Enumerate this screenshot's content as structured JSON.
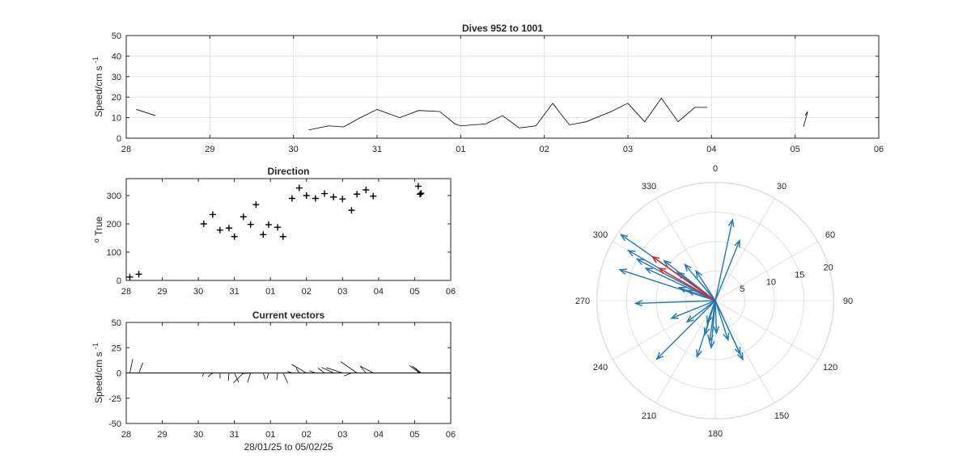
{
  "chart_data": [
    {
      "type": "line",
      "title": "Dives 952 to 1001",
      "ylabel": "Speed/cm s",
      "ylabel_sup": "-1",
      "xlabel": "",
      "x_ticks": [
        "28",
        "29",
        "30",
        "31",
        "01",
        "02",
        "03",
        "04",
        "05",
        "06"
      ],
      "y_ticks": [
        "0",
        "10",
        "20",
        "30",
        "40",
        "50"
      ],
      "xlim": [
        0,
        9
      ],
      "ylim": [
        0,
        50
      ],
      "grid": true,
      "segments": [
        {
          "x": [
            0.12,
            0.35
          ],
          "y": [
            14,
            11
          ]
        },
        {
          "x": [
            2.18,
            2.42,
            2.6,
            2.8,
            3.0,
            3.27,
            3.5,
            3.75,
            3.93,
            4.0,
            4.3,
            4.5,
            4.7,
            4.9,
            5.1,
            5.3,
            5.5,
            5.8,
            6.0
          ],
          "y": [
            4,
            6,
            5.5,
            10,
            14,
            10,
            13.5,
            13,
            7,
            6,
            7,
            11,
            5,
            6,
            17,
            6.5,
            8,
            13,
            17
          ]
        },
        {
          "x": [
            6.0,
            6.2,
            6.4,
            6.6,
            6.8,
            6.95
          ],
          "y": [
            17,
            8,
            19.5,
            8,
            15,
            15
          ]
        },
        {
          "x": [
            8.1,
            8.15,
            8.12
          ],
          "y": [
            5.5,
            13,
            11
          ]
        }
      ]
    },
    {
      "type": "scatter",
      "title": "Direction",
      "ylabel": "True",
      "ylabel_sup": "o",
      "marker": "+",
      "x_ticks": [
        "28",
        "29",
        "30",
        "31",
        "01",
        "02",
        "03",
        "04",
        "05",
        "06"
      ],
      "y_ticks": [
        "0",
        "100",
        "200",
        "300"
      ],
      "xlim": [
        0,
        9
      ],
      "ylim": [
        0,
        360
      ],
      "grid": false,
      "points": [
        {
          "x": 0.1,
          "y": 12
        },
        {
          "x": 0.35,
          "y": 22
        },
        {
          "x": 2.15,
          "y": 200
        },
        {
          "x": 2.4,
          "y": 233
        },
        {
          "x": 2.6,
          "y": 178
        },
        {
          "x": 2.85,
          "y": 185
        },
        {
          "x": 3.0,
          "y": 155
        },
        {
          "x": 3.25,
          "y": 225
        },
        {
          "x": 3.45,
          "y": 198
        },
        {
          "x": 3.6,
          "y": 268
        },
        {
          "x": 3.8,
          "y": 162
        },
        {
          "x": 3.95,
          "y": 197
        },
        {
          "x": 4.2,
          "y": 188
        },
        {
          "x": 4.35,
          "y": 155
        },
        {
          "x": 4.6,
          "y": 290
        },
        {
          "x": 4.8,
          "y": 327
        },
        {
          "x": 5.0,
          "y": 300
        },
        {
          "x": 5.25,
          "y": 290
        },
        {
          "x": 5.5,
          "y": 307
        },
        {
          "x": 5.75,
          "y": 295
        },
        {
          "x": 6.0,
          "y": 288
        },
        {
          "x": 6.25,
          "y": 248
        },
        {
          "x": 6.4,
          "y": 305
        },
        {
          "x": 6.65,
          "y": 320
        },
        {
          "x": 6.85,
          "y": 298
        },
        {
          "x": 8.1,
          "y": 333
        },
        {
          "x": 8.15,
          "y": 305
        },
        {
          "x": 8.18,
          "y": 308
        }
      ]
    },
    {
      "type": "line",
      "subtype": "stick-plot",
      "title": "Current vectors",
      "ylabel": "Speed/cm s",
      "ylabel_sup": "-1",
      "xlabel": "28/01/25 to 05/02/25",
      "x_ticks": [
        "28",
        "29",
        "30",
        "31",
        "01",
        "02",
        "03",
        "04",
        "05",
        "06"
      ],
      "y_ticks": [
        "50",
        "25",
        "0",
        "-25",
        "-50"
      ],
      "xlim": [
        0,
        9
      ],
      "ylim": [
        -50,
        50
      ],
      "grid": false,
      "sticks": [
        {
          "x": 0.1,
          "speed": 14,
          "dir": 12
        },
        {
          "x": 0.35,
          "speed": 11,
          "dir": 22
        },
        {
          "x": 2.15,
          "speed": 4,
          "dir": 200
        },
        {
          "x": 2.4,
          "speed": 6,
          "dir": 233
        },
        {
          "x": 2.6,
          "speed": 5.5,
          "dir": 178
        },
        {
          "x": 2.85,
          "speed": 8,
          "dir": 185
        },
        {
          "x": 3.0,
          "speed": 10,
          "dir": 155
        },
        {
          "x": 3.25,
          "speed": 14,
          "dir": 225
        },
        {
          "x": 3.45,
          "speed": 10,
          "dir": 198
        },
        {
          "x": 3.6,
          "speed": 13.5,
          "dir": 268
        },
        {
          "x": 3.8,
          "speed": 7,
          "dir": 162
        },
        {
          "x": 3.95,
          "speed": 6,
          "dir": 197
        },
        {
          "x": 4.2,
          "speed": 7,
          "dir": 188
        },
        {
          "x": 4.35,
          "speed": 11,
          "dir": 155
        },
        {
          "x": 4.6,
          "speed": 5,
          "dir": 290
        },
        {
          "x": 4.8,
          "speed": 6,
          "dir": 327
        },
        {
          "x": 5.0,
          "speed": 17,
          "dir": 300
        },
        {
          "x": 5.25,
          "speed": 6.5,
          "dir": 290
        },
        {
          "x": 5.5,
          "speed": 8,
          "dir": 307
        },
        {
          "x": 5.75,
          "speed": 13,
          "dir": 295
        },
        {
          "x": 6.0,
          "speed": 17,
          "dir": 288
        },
        {
          "x": 6.25,
          "speed": 8,
          "dir": 248
        },
        {
          "x": 6.4,
          "speed": 19.5,
          "dir": 305
        },
        {
          "x": 6.65,
          "speed": 8,
          "dir": 320
        },
        {
          "x": 6.85,
          "speed": 15,
          "dir": 298
        },
        {
          "x": 8.1,
          "speed": 5.5,
          "dir": 333
        },
        {
          "x": 8.15,
          "speed": 13,
          "dir": 305
        },
        {
          "x": 8.18,
          "speed": 11,
          "dir": 308
        }
      ]
    },
    {
      "type": "scatter",
      "subtype": "polar-compass",
      "title": "",
      "angle_ticks": [
        "0",
        "30",
        "60",
        "90",
        "120",
        "150",
        "180",
        "210",
        "240",
        "270",
        "300",
        "330"
      ],
      "radius_ticks": [
        "5",
        "10",
        "15",
        "20"
      ],
      "rlim": [
        0,
        20
      ],
      "grid": true,
      "colors": {
        "vectors": "#1f77b4",
        "latest": "#d62728"
      },
      "vectors": [
        {
          "speed": 14,
          "dir": 12
        },
        {
          "speed": 11,
          "dir": 22
        },
        {
          "speed": 4,
          "dir": 200
        },
        {
          "speed": 6,
          "dir": 233
        },
        {
          "speed": 5.5,
          "dir": 178
        },
        {
          "speed": 8,
          "dir": 185
        },
        {
          "speed": 10,
          "dir": 155
        },
        {
          "speed": 14,
          "dir": 225
        },
        {
          "speed": 10,
          "dir": 198
        },
        {
          "speed": 13.5,
          "dir": 268
        },
        {
          "speed": 7,
          "dir": 162
        },
        {
          "speed": 6,
          "dir": 197
        },
        {
          "speed": 7,
          "dir": 188
        },
        {
          "speed": 11,
          "dir": 155
        },
        {
          "speed": 5,
          "dir": 290
        },
        {
          "speed": 6,
          "dir": 327
        },
        {
          "speed": 17,
          "dir": 300
        },
        {
          "speed": 6.5,
          "dir": 290
        },
        {
          "speed": 8,
          "dir": 307
        },
        {
          "speed": 13,
          "dir": 295
        },
        {
          "speed": 17,
          "dir": 288
        },
        {
          "speed": 8,
          "dir": 248
        },
        {
          "speed": 19.5,
          "dir": 305
        },
        {
          "speed": 8,
          "dir": 320
        },
        {
          "speed": 15,
          "dir": 298
        },
        {
          "speed": 13,
          "dir": 305
        },
        {
          "speed": 11,
          "dir": 308
        }
      ],
      "latest_vectors": [
        {
          "speed": 13,
          "dir": 305
        },
        {
          "speed": 11,
          "dir": 300
        }
      ]
    }
  ]
}
